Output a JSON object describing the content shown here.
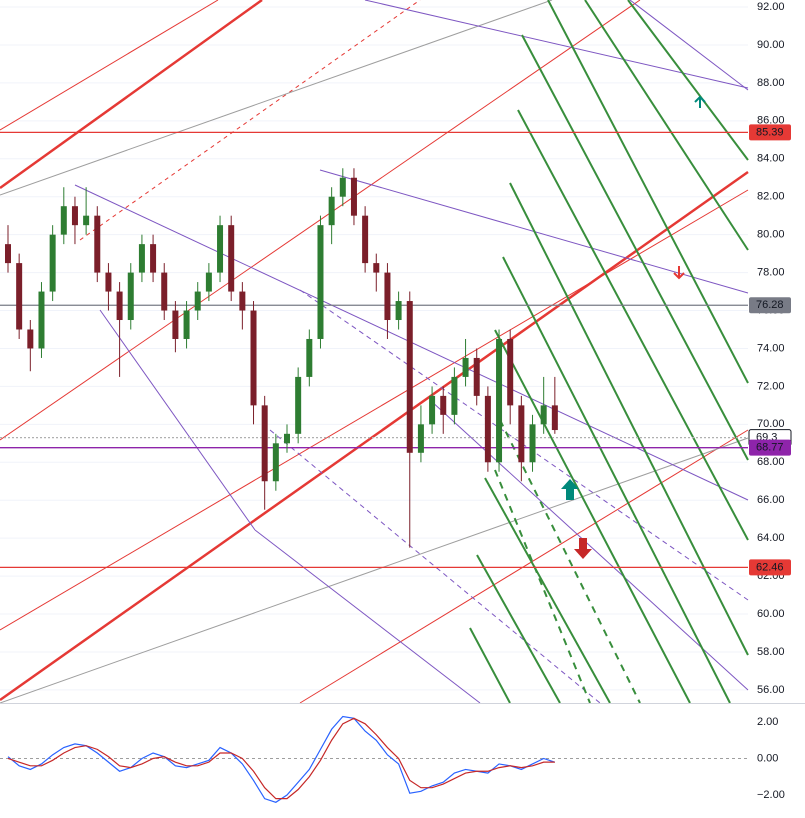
{
  "chart_data": [
    {
      "type": "candlestick",
      "ylim": [
        55.31,
        92.37
      ],
      "yticks": [
        {
          "value": 92,
          "label": "92.00"
        },
        {
          "value": 90,
          "label": "90.00"
        },
        {
          "value": 88,
          "label": "88.00"
        },
        {
          "value": 86,
          "label": "86.00"
        },
        {
          "value": 84,
          "label": "84.00"
        },
        {
          "value": 82,
          "label": "82.00"
        },
        {
          "value": 80,
          "label": "80.00"
        },
        {
          "value": 78,
          "label": "78.00"
        },
        {
          "value": 76,
          "label": "76.00"
        },
        {
          "value": 74,
          "label": "74.00"
        },
        {
          "value": 72,
          "label": "72.00"
        },
        {
          "value": 70,
          "label": "70.00"
        },
        {
          "value": 68,
          "label": "68.00"
        },
        {
          "value": 66,
          "label": "66.00"
        },
        {
          "value": 64,
          "label": "64.00"
        },
        {
          "value": 62,
          "label": "62.00"
        },
        {
          "value": 60,
          "label": "60.00"
        },
        {
          "value": 58,
          "label": "58.00"
        },
        {
          "value": 56,
          "label": "56.00"
        }
      ],
      "grid": true,
      "up_color": "#2e7d32",
      "down_color": "#7b1f2a",
      "open": [
        79.5,
        78.5,
        75,
        74,
        77,
        80,
        81.5,
        80.5,
        81,
        78,
        77,
        75.5,
        78,
        79.5,
        78,
        76,
        74.5,
        76,
        77,
        78,
        80.5,
        77,
        76,
        71,
        67,
        69,
        69.5,
        72.5,
        74.5,
        80.5,
        82,
        83,
        81,
        78.5,
        78,
        75.5,
        76.5,
        68.5,
        70,
        71.5,
        70.5,
        72.5,
        73.5,
        71.5,
        68,
        74.5,
        71,
        68,
        70,
        71
      ],
      "high": [
        80.5,
        79,
        75.5,
        77.5,
        80.5,
        82.5,
        82,
        82.5,
        81.5,
        78.5,
        77.5,
        78.5,
        80,
        80,
        78.5,
        76.5,
        76.5,
        77.5,
        78.5,
        81,
        81,
        77.5,
        76.5,
        71.5,
        69.5,
        70,
        73,
        75,
        81,
        82.5,
        83.5,
        83.5,
        81.5,
        79,
        78.5,
        77,
        77,
        71,
        72,
        72,
        73,
        74.5,
        74,
        72,
        75,
        75,
        71.5,
        70.5,
        72.5,
        72.5
      ],
      "low": [
        78,
        74.5,
        72.8,
        73.5,
        76.5,
        79.5,
        79.5,
        80,
        77.5,
        76,
        72.5,
        75,
        77.5,
        77.5,
        75.5,
        73.8,
        74,
        75.5,
        76.5,
        77.5,
        76.5,
        75,
        70,
        65.5,
        66.5,
        68.5,
        69,
        72,
        74,
        79.5,
        81.5,
        80.5,
        78,
        77,
        74.5,
        75,
        63.5,
        68,
        69.5,
        69.5,
        70,
        72,
        71,
        67.5,
        67.5,
        70,
        67,
        67.5,
        69.5,
        69.5
      ],
      "close": [
        78.5,
        75,
        74,
        77,
        80,
        81.5,
        80.5,
        81,
        78,
        77,
        75.5,
        78,
        79.5,
        78,
        76,
        74.5,
        76,
        77,
        78,
        80.5,
        77,
        76,
        71,
        67,
        69,
        69.5,
        72.5,
        74.5,
        80.5,
        82,
        83,
        81,
        78.5,
        78,
        75.5,
        76.5,
        68.5,
        70,
        71.5,
        70.5,
        72.5,
        73.5,
        71.5,
        68,
        74.5,
        71,
        68,
        70,
        71,
        69.7
      ],
      "price_lines": [
        {
          "value": 85.39,
          "color": "#e53935",
          "dashed": false
        },
        {
          "value": 76.28,
          "color": "#787b86",
          "dashed": false
        },
        {
          "value": 69.3,
          "color": "#b0b0b0",
          "dashed": true
        },
        {
          "value": 68.77,
          "color": "#8e24aa",
          "dashed": false
        },
        {
          "value": 62.46,
          "color": "#e53935",
          "dashed": false
        }
      ]
    },
    {
      "type": "line",
      "ylim": [
        -3.26,
        2.93
      ],
      "yticks": [
        {
          "value": 2,
          "label": "2.00"
        },
        {
          "value": 0,
          "label": "0.00"
        },
        {
          "value": -2,
          "label": "−2.00"
        }
      ],
      "zero_line": true,
      "series": [
        {
          "color": "#2962ff",
          "values": [
            0.1,
            -0.4,
            -0.6,
            -0.3,
            0.2,
            0.6,
            0.8,
            0.7,
            0.3,
            -0.2,
            -0.7,
            -0.5,
            0,
            0.3,
            0.1,
            -0.4,
            -0.5,
            -0.3,
            -0.1,
            0.6,
            0.3,
            -0.3,
            -1.2,
            -2.2,
            -2.4,
            -2,
            -1.3,
            -0.6,
            0.5,
            1.6,
            2.3,
            2.2,
            1.5,
            1,
            0.2,
            -0.3,
            -1.9,
            -1.8,
            -1.5,
            -1.3,
            -0.8,
            -0.6,
            -0.7,
            -0.8,
            -0.3,
            -0.4,
            -0.6,
            -0.3,
            0,
            -0.2
          ]
        },
        {
          "color": "#c62828",
          "values": [
            0,
            -0.2,
            -0.4,
            -0.4,
            -0.1,
            0.3,
            0.6,
            0.7,
            0.5,
            0.1,
            -0.4,
            -0.5,
            -0.3,
            0,
            0.1,
            -0.2,
            -0.4,
            -0.4,
            -0.2,
            0.3,
            0.3,
            0,
            -0.7,
            -1.6,
            -2.2,
            -2.2,
            -1.7,
            -1,
            -0.1,
            1,
            1.9,
            2.2,
            1.9,
            1.3,
            0.6,
            0,
            -1.2,
            -1.6,
            -1.6,
            -1.4,
            -1.1,
            -0.8,
            -0.7,
            -0.7,
            -0.5,
            -0.4,
            -0.5,
            -0.4,
            -0.2,
            -0.2
          ]
        }
      ]
    }
  ]
}
